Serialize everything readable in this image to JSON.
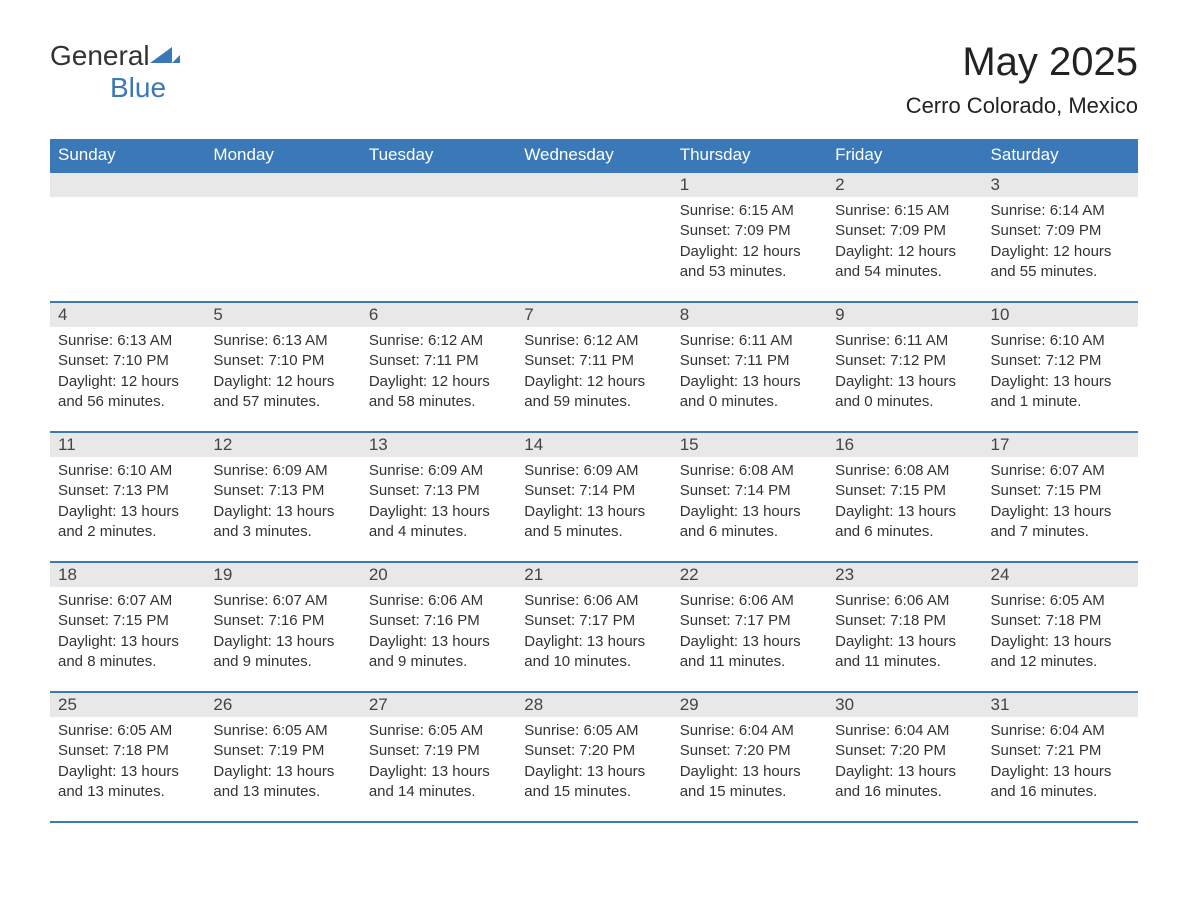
{
  "logo": {
    "text1": "General",
    "text2": "Blue"
  },
  "title": "May 2025",
  "location": "Cerro Colorado, Mexico",
  "colors": {
    "header_bg": "#3a78b8",
    "header_text": "#ffffff",
    "daynum_bg": "#e8e8e8",
    "body_text": "#333333",
    "rule": "#3a78b8"
  },
  "day_names": [
    "Sunday",
    "Monday",
    "Tuesday",
    "Wednesday",
    "Thursday",
    "Friday",
    "Saturday"
  ],
  "weeks": [
    [
      {
        "n": "",
        "sr": "",
        "ss": "",
        "dl": ""
      },
      {
        "n": "",
        "sr": "",
        "ss": "",
        "dl": ""
      },
      {
        "n": "",
        "sr": "",
        "ss": "",
        "dl": ""
      },
      {
        "n": "",
        "sr": "",
        "ss": "",
        "dl": ""
      },
      {
        "n": "1",
        "sr": "Sunrise: 6:15 AM",
        "ss": "Sunset: 7:09 PM",
        "dl": "Daylight: 12 hours and 53 minutes."
      },
      {
        "n": "2",
        "sr": "Sunrise: 6:15 AM",
        "ss": "Sunset: 7:09 PM",
        "dl": "Daylight: 12 hours and 54 minutes."
      },
      {
        "n": "3",
        "sr": "Sunrise: 6:14 AM",
        "ss": "Sunset: 7:09 PM",
        "dl": "Daylight: 12 hours and 55 minutes."
      }
    ],
    [
      {
        "n": "4",
        "sr": "Sunrise: 6:13 AM",
        "ss": "Sunset: 7:10 PM",
        "dl": "Daylight: 12 hours and 56 minutes."
      },
      {
        "n": "5",
        "sr": "Sunrise: 6:13 AM",
        "ss": "Sunset: 7:10 PM",
        "dl": "Daylight: 12 hours and 57 minutes."
      },
      {
        "n": "6",
        "sr": "Sunrise: 6:12 AM",
        "ss": "Sunset: 7:11 PM",
        "dl": "Daylight: 12 hours and 58 minutes."
      },
      {
        "n": "7",
        "sr": "Sunrise: 6:12 AM",
        "ss": "Sunset: 7:11 PM",
        "dl": "Daylight: 12 hours and 59 minutes."
      },
      {
        "n": "8",
        "sr": "Sunrise: 6:11 AM",
        "ss": "Sunset: 7:11 PM",
        "dl": "Daylight: 13 hours and 0 minutes."
      },
      {
        "n": "9",
        "sr": "Sunrise: 6:11 AM",
        "ss": "Sunset: 7:12 PM",
        "dl": "Daylight: 13 hours and 0 minutes."
      },
      {
        "n": "10",
        "sr": "Sunrise: 6:10 AM",
        "ss": "Sunset: 7:12 PM",
        "dl": "Daylight: 13 hours and 1 minute."
      }
    ],
    [
      {
        "n": "11",
        "sr": "Sunrise: 6:10 AM",
        "ss": "Sunset: 7:13 PM",
        "dl": "Daylight: 13 hours and 2 minutes."
      },
      {
        "n": "12",
        "sr": "Sunrise: 6:09 AM",
        "ss": "Sunset: 7:13 PM",
        "dl": "Daylight: 13 hours and 3 minutes."
      },
      {
        "n": "13",
        "sr": "Sunrise: 6:09 AM",
        "ss": "Sunset: 7:13 PM",
        "dl": "Daylight: 13 hours and 4 minutes."
      },
      {
        "n": "14",
        "sr": "Sunrise: 6:09 AM",
        "ss": "Sunset: 7:14 PM",
        "dl": "Daylight: 13 hours and 5 minutes."
      },
      {
        "n": "15",
        "sr": "Sunrise: 6:08 AM",
        "ss": "Sunset: 7:14 PM",
        "dl": "Daylight: 13 hours and 6 minutes."
      },
      {
        "n": "16",
        "sr": "Sunrise: 6:08 AM",
        "ss": "Sunset: 7:15 PM",
        "dl": "Daylight: 13 hours and 6 minutes."
      },
      {
        "n": "17",
        "sr": "Sunrise: 6:07 AM",
        "ss": "Sunset: 7:15 PM",
        "dl": "Daylight: 13 hours and 7 minutes."
      }
    ],
    [
      {
        "n": "18",
        "sr": "Sunrise: 6:07 AM",
        "ss": "Sunset: 7:15 PM",
        "dl": "Daylight: 13 hours and 8 minutes."
      },
      {
        "n": "19",
        "sr": "Sunrise: 6:07 AM",
        "ss": "Sunset: 7:16 PM",
        "dl": "Daylight: 13 hours and 9 minutes."
      },
      {
        "n": "20",
        "sr": "Sunrise: 6:06 AM",
        "ss": "Sunset: 7:16 PM",
        "dl": "Daylight: 13 hours and 9 minutes."
      },
      {
        "n": "21",
        "sr": "Sunrise: 6:06 AM",
        "ss": "Sunset: 7:17 PM",
        "dl": "Daylight: 13 hours and 10 minutes."
      },
      {
        "n": "22",
        "sr": "Sunrise: 6:06 AM",
        "ss": "Sunset: 7:17 PM",
        "dl": "Daylight: 13 hours and 11 minutes."
      },
      {
        "n": "23",
        "sr": "Sunrise: 6:06 AM",
        "ss": "Sunset: 7:18 PM",
        "dl": "Daylight: 13 hours and 11 minutes."
      },
      {
        "n": "24",
        "sr": "Sunrise: 6:05 AM",
        "ss": "Sunset: 7:18 PM",
        "dl": "Daylight: 13 hours and 12 minutes."
      }
    ],
    [
      {
        "n": "25",
        "sr": "Sunrise: 6:05 AM",
        "ss": "Sunset: 7:18 PM",
        "dl": "Daylight: 13 hours and 13 minutes."
      },
      {
        "n": "26",
        "sr": "Sunrise: 6:05 AM",
        "ss": "Sunset: 7:19 PM",
        "dl": "Daylight: 13 hours and 13 minutes."
      },
      {
        "n": "27",
        "sr": "Sunrise: 6:05 AM",
        "ss": "Sunset: 7:19 PM",
        "dl": "Daylight: 13 hours and 14 minutes."
      },
      {
        "n": "28",
        "sr": "Sunrise: 6:05 AM",
        "ss": "Sunset: 7:20 PM",
        "dl": "Daylight: 13 hours and 15 minutes."
      },
      {
        "n": "29",
        "sr": "Sunrise: 6:04 AM",
        "ss": "Sunset: 7:20 PM",
        "dl": "Daylight: 13 hours and 15 minutes."
      },
      {
        "n": "30",
        "sr": "Sunrise: 6:04 AM",
        "ss": "Sunset: 7:20 PM",
        "dl": "Daylight: 13 hours and 16 minutes."
      },
      {
        "n": "31",
        "sr": "Sunrise: 6:04 AM",
        "ss": "Sunset: 7:21 PM",
        "dl": "Daylight: 13 hours and 16 minutes."
      }
    ]
  ]
}
